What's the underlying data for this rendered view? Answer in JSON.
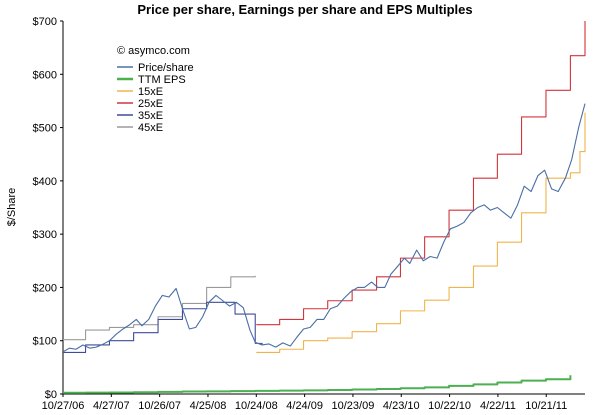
{
  "chart_data": {
    "type": "line",
    "title": "Price per share, Earnings per share and EPS Multiples",
    "annotation": "© asymco.com",
    "ylabel": "$/Share",
    "xlabel": "",
    "ylim": [
      0,
      700
    ],
    "xlim": [
      "2006-10-27",
      "2012-03-15"
    ],
    "grid": false,
    "legend_position": "top-left",
    "y_ticks": [
      {
        "value": 0,
        "label": "$0"
      },
      {
        "value": 100,
        "label": "$100"
      },
      {
        "value": 200,
        "label": "$200"
      },
      {
        "value": 300,
        "label": "$300"
      },
      {
        "value": 400,
        "label": "$400"
      },
      {
        "value": 500,
        "label": "$500"
      },
      {
        "value": 600,
        "label": "$600"
      },
      {
        "value": 700,
        "label": "$700"
      }
    ],
    "x_ticks": [
      {
        "date": "2006-10-27",
        "label": "10/27/06"
      },
      {
        "date": "2007-04-27",
        "label": "4/27/07"
      },
      {
        "date": "2007-10-26",
        "label": "10/26/07"
      },
      {
        "date": "2008-04-25",
        "label": "4/25/08"
      },
      {
        "date": "2008-10-24",
        "label": "10/24/08"
      },
      {
        "date": "2009-04-24",
        "label": "4/24/09"
      },
      {
        "date": "2009-10-23",
        "label": "10/23/09"
      },
      {
        "date": "2010-04-23",
        "label": "4/23/10"
      },
      {
        "date": "2010-10-22",
        "label": "10/22/10"
      },
      {
        "date": "2011-04-22",
        "label": "4/22/11"
      },
      {
        "date": "2011-10-21",
        "label": "10/21/11"
      }
    ],
    "series": [
      {
        "name": "Price/share",
        "color": "#4a6fa5",
        "kind": "line",
        "points": [
          [
            "2006-10-27",
            79
          ],
          [
            "2006-11-20",
            86
          ],
          [
            "2006-12-15",
            84
          ],
          [
            "2007-01-10",
            92
          ],
          [
            "2007-02-05",
            86
          ],
          [
            "2007-03-01",
            88
          ],
          [
            "2007-03-25",
            93
          ],
          [
            "2007-04-20",
            100
          ],
          [
            "2007-05-15",
            112
          ],
          [
            "2007-06-10",
            122
          ],
          [
            "2007-07-05",
            130
          ],
          [
            "2007-07-30",
            140
          ],
          [
            "2007-08-20",
            128
          ],
          [
            "2007-09-15",
            140
          ],
          [
            "2007-10-10",
            165
          ],
          [
            "2007-11-05",
            185
          ],
          [
            "2007-11-30",
            182
          ],
          [
            "2007-12-27",
            198
          ],
          [
            "2008-01-20",
            160
          ],
          [
            "2008-02-15",
            122
          ],
          [
            "2008-03-10",
            125
          ],
          [
            "2008-04-05",
            145
          ],
          [
            "2008-04-30",
            173
          ],
          [
            "2008-05-25",
            185
          ],
          [
            "2008-06-20",
            175
          ],
          [
            "2008-07-15",
            165
          ],
          [
            "2008-08-10",
            172
          ],
          [
            "2008-09-05",
            162
          ],
          [
            "2008-09-30",
            120
          ],
          [
            "2008-10-20",
            97
          ],
          [
            "2008-11-15",
            92
          ],
          [
            "2008-12-10",
            94
          ],
          [
            "2009-01-05",
            88
          ],
          [
            "2009-02-01",
            96
          ],
          [
            "2009-03-01",
            90
          ],
          [
            "2009-03-25",
            106
          ],
          [
            "2009-04-20",
            122
          ],
          [
            "2009-05-15",
            125
          ],
          [
            "2009-06-10",
            140
          ],
          [
            "2009-07-05",
            140
          ],
          [
            "2009-07-30",
            160
          ],
          [
            "2009-08-25",
            165
          ],
          [
            "2009-09-20",
            180
          ],
          [
            "2009-10-15",
            192
          ],
          [
            "2009-11-10",
            200
          ],
          [
            "2009-12-05",
            200
          ],
          [
            "2010-01-01",
            210
          ],
          [
            "2010-01-25",
            200
          ],
          [
            "2010-02-20",
            200
          ],
          [
            "2010-03-15",
            225
          ],
          [
            "2010-04-10",
            240
          ],
          [
            "2010-05-05",
            255
          ],
          [
            "2010-05-25",
            245
          ],
          [
            "2010-06-20",
            270
          ],
          [
            "2010-07-15",
            250
          ],
          [
            "2010-08-10",
            258
          ],
          [
            "2010-09-05",
            255
          ],
          [
            "2010-09-30",
            285
          ],
          [
            "2010-10-25",
            310
          ],
          [
            "2010-11-20",
            315
          ],
          [
            "2010-12-15",
            322
          ],
          [
            "2011-01-10",
            340
          ],
          [
            "2011-02-05",
            350
          ],
          [
            "2011-03-01",
            355
          ],
          [
            "2011-03-25",
            345
          ],
          [
            "2011-04-20",
            350
          ],
          [
            "2011-05-15",
            340
          ],
          [
            "2011-06-10",
            330
          ],
          [
            "2011-07-05",
            355
          ],
          [
            "2011-07-30",
            390
          ],
          [
            "2011-08-25",
            380
          ],
          [
            "2011-09-20",
            410
          ],
          [
            "2011-10-15",
            420
          ],
          [
            "2011-11-10",
            385
          ],
          [
            "2011-12-05",
            380
          ],
          [
            "2012-01-01",
            405
          ],
          [
            "2012-01-25",
            440
          ],
          [
            "2012-02-20",
            500
          ],
          [
            "2012-03-15",
            545
          ]
        ]
      },
      {
        "name": "TTM EPS",
        "color": "#4caf50",
        "kind": "step",
        "points": [
          [
            "2006-10-27",
            2.3
          ],
          [
            "2007-01-20",
            2.6
          ],
          [
            "2007-04-20",
            2.9
          ],
          [
            "2007-07-20",
            3.3
          ],
          [
            "2007-10-20",
            4.0
          ],
          [
            "2008-01-20",
            4.6
          ],
          [
            "2008-04-20",
            5.0
          ],
          [
            "2008-07-20",
            5.4
          ],
          [
            "2008-10-20",
            5.9
          ],
          [
            "2009-01-20",
            6.4
          ],
          [
            "2009-04-20",
            6.9
          ],
          [
            "2009-07-20",
            7.5
          ],
          [
            "2009-10-20",
            8.4
          ],
          [
            "2010-01-20",
            9.5
          ],
          [
            "2010-04-20",
            10.8
          ],
          [
            "2010-07-20",
            12.5
          ],
          [
            "2010-10-20",
            15.2
          ],
          [
            "2011-01-20",
            18.0
          ],
          [
            "2011-04-20",
            21.5
          ],
          [
            "2011-07-20",
            25.0
          ],
          [
            "2011-10-20",
            27.7
          ],
          [
            "2012-01-20",
            35.1
          ]
        ]
      },
      {
        "name": "15xE",
        "color": "#f0b44c",
        "kind": "step",
        "points": [
          [
            "2008-10-24",
            78
          ],
          [
            "2009-01-20",
            84
          ],
          [
            "2009-04-20",
            100
          ],
          [
            "2009-07-20",
            105
          ],
          [
            "2009-10-20",
            117
          ],
          [
            "2010-01-20",
            132
          ],
          [
            "2010-04-20",
            156
          ],
          [
            "2010-07-20",
            176
          ],
          [
            "2010-10-20",
            200
          ],
          [
            "2011-01-20",
            240
          ],
          [
            "2011-04-20",
            285
          ],
          [
            "2011-07-20",
            340
          ],
          [
            "2011-10-20",
            405
          ],
          [
            "2012-01-20",
            415
          ],
          [
            "2012-02-25",
            455
          ],
          [
            "2012-03-15",
            528
          ]
        ]
      },
      {
        "name": "25xE",
        "color": "#d1343a",
        "kind": "step",
        "points": [
          [
            "2008-10-24",
            130
          ],
          [
            "2009-01-20",
            140
          ],
          [
            "2009-04-20",
            160
          ],
          [
            "2009-07-20",
            175
          ],
          [
            "2009-10-20",
            195
          ],
          [
            "2010-01-20",
            220
          ],
          [
            "2010-04-20",
            255
          ],
          [
            "2010-07-20",
            295
          ],
          [
            "2010-10-20",
            345
          ],
          [
            "2011-01-20",
            405
          ],
          [
            "2011-04-20",
            450
          ],
          [
            "2011-07-20",
            520
          ],
          [
            "2011-10-20",
            570
          ],
          [
            "2012-01-20",
            635
          ],
          [
            "2012-03-15",
            700
          ]
        ]
      },
      {
        "name": "35xE",
        "color": "#3f4b9a",
        "kind": "step",
        "points": [
          [
            "2006-10-27",
            78
          ],
          [
            "2007-01-20",
            92
          ],
          [
            "2007-04-20",
            100
          ],
          [
            "2007-07-20",
            115
          ],
          [
            "2007-10-20",
            140
          ],
          [
            "2008-01-20",
            160
          ],
          [
            "2008-04-20",
            172
          ],
          [
            "2008-08-05",
            150
          ],
          [
            "2008-10-20",
            95
          ],
          [
            "2008-11-15",
            92
          ]
        ]
      },
      {
        "name": "45xE",
        "color": "#9a9a9a",
        "kind": "step",
        "points": [
          [
            "2006-10-27",
            102
          ],
          [
            "2007-01-20",
            120
          ],
          [
            "2007-04-20",
            125
          ],
          [
            "2007-07-20",
            130
          ],
          [
            "2007-10-20",
            145
          ],
          [
            "2008-01-20",
            170
          ],
          [
            "2008-04-20",
            200
          ],
          [
            "2008-07-20",
            220
          ],
          [
            "2008-10-20",
            222
          ]
        ]
      }
    ]
  }
}
